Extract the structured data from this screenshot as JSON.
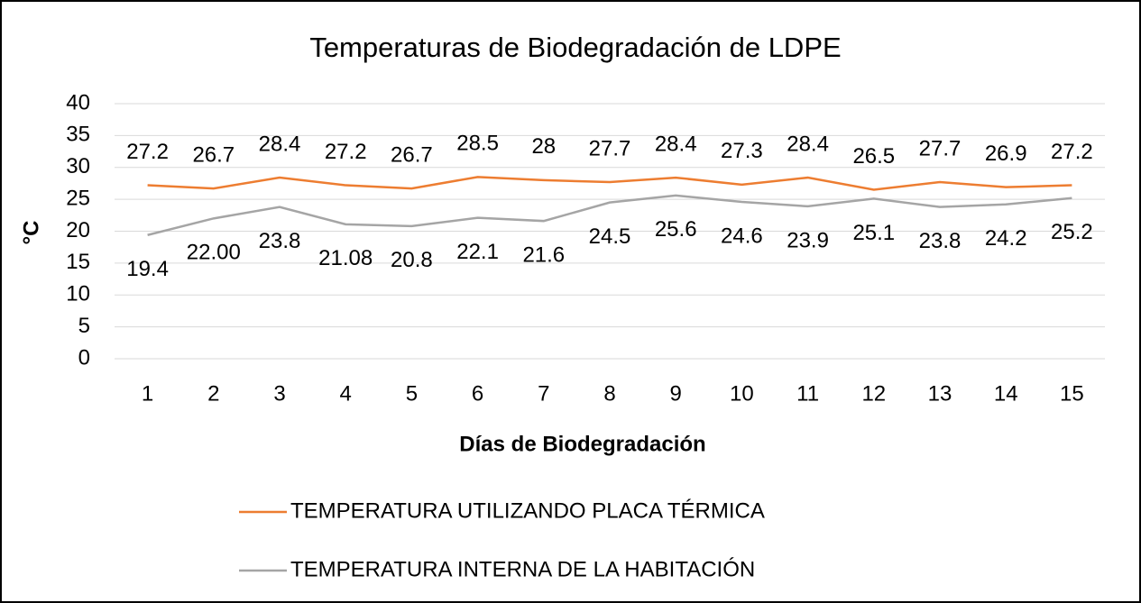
{
  "chart_data": {
    "type": "line",
    "title": "Temperaturas de Biodegradación de LDPE",
    "x_label": "Días de Biodegradación",
    "y_label": "°C",
    "categories": [
      "1",
      "2",
      "3",
      "4",
      "5",
      "6",
      "7",
      "8",
      "9",
      "10",
      "11",
      "12",
      "13",
      "14",
      "15"
    ],
    "series": [
      {
        "name": "TEMPERATURA UTILIZANDO PLACA TÉRMICA",
        "color": "#ed7d31",
        "values": [
          27.2,
          26.7,
          28.4,
          27.2,
          26.7,
          28.5,
          28,
          27.7,
          28.4,
          27.3,
          28.4,
          26.5,
          27.7,
          26.9,
          27.2
        ]
      },
      {
        "name": "TEMPERATURA INTERNA DE LA HABITACIÓN",
        "color": "#a5a5a5",
        "values": [
          19.4,
          22,
          23.8,
          21.08,
          20.8,
          22.1,
          21.6,
          24.5,
          25.6,
          24.6,
          23.9,
          25.1,
          23.8,
          24.2,
          25.2
        ],
        "value_labels": [
          "19.4",
          "22.00",
          "23.8",
          "21.08",
          "20.8",
          "22.1",
          "21.6",
          "24.5",
          "25.6",
          "24.6",
          "23.9",
          "25.1",
          "23.8",
          "24.2",
          "25.2"
        ]
      }
    ],
    "ylim": [
      0,
      40
    ],
    "yticks": [
      0,
      5,
      10,
      15,
      20,
      25,
      30,
      35,
      40
    ],
    "grid": true,
    "legend": "bottom"
  }
}
